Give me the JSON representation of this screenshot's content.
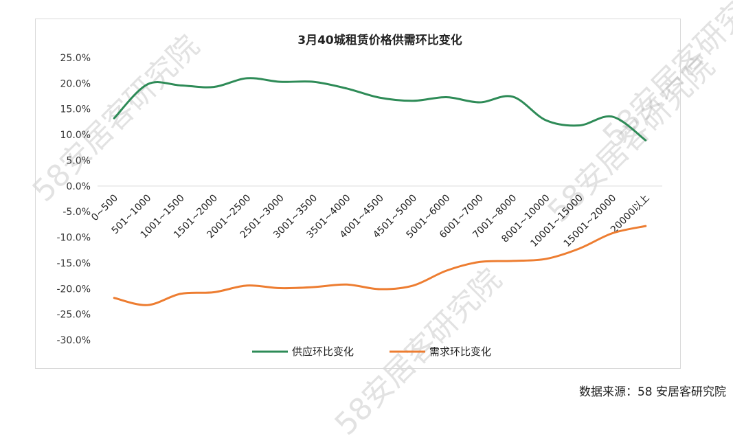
{
  "source": "数据来源：58 安居客研究院",
  "watermark": "58安居客研究院",
  "colors": {
    "supply": "#2e8b57",
    "demand": "#ed7d31",
    "axis": "#d9d9d9"
  },
  "chart_data": {
    "type": "line",
    "title": "3月40城租赁价格供需环比变化",
    "categories": [
      "0~500",
      "501~1000",
      "1001~1500",
      "1501~2000",
      "2001~2500",
      "2501~3000",
      "3001~3500",
      "3501~4000",
      "4001~4500",
      "4501~5000",
      "5001~6000",
      "6001~7000",
      "7001~8000",
      "8001~10000",
      "10001~15000",
      "15001~20000",
      "20000以上"
    ],
    "yticks": [
      "25.0%",
      "20.0%",
      "15.0%",
      "10.0%",
      "5.0%",
      "0.0%",
      "-5.0%",
      "-10.0%",
      "-15.0%",
      "-20.0%",
      "-25.0%",
      "-30.0%"
    ],
    "ylim": [
      -30,
      25
    ],
    "legend_position": "bottom",
    "series": [
      {
        "name": "供应环比变化",
        "values": [
          13.2,
          19.8,
          19.6,
          19.3,
          21.0,
          20.3,
          20.3,
          19.0,
          17.2,
          16.6,
          17.3,
          16.3,
          17.4,
          12.8,
          11.8,
          13.5,
          8.9
        ]
      },
      {
        "name": "需求环比变化",
        "values": [
          -21.8,
          -23.2,
          -21.0,
          -20.7,
          -19.4,
          -19.9,
          -19.7,
          -19.2,
          -20.1,
          -19.4,
          -16.5,
          -14.8,
          -14.6,
          -14.2,
          -12.2,
          -9.2,
          -7.8
        ]
      }
    ]
  }
}
